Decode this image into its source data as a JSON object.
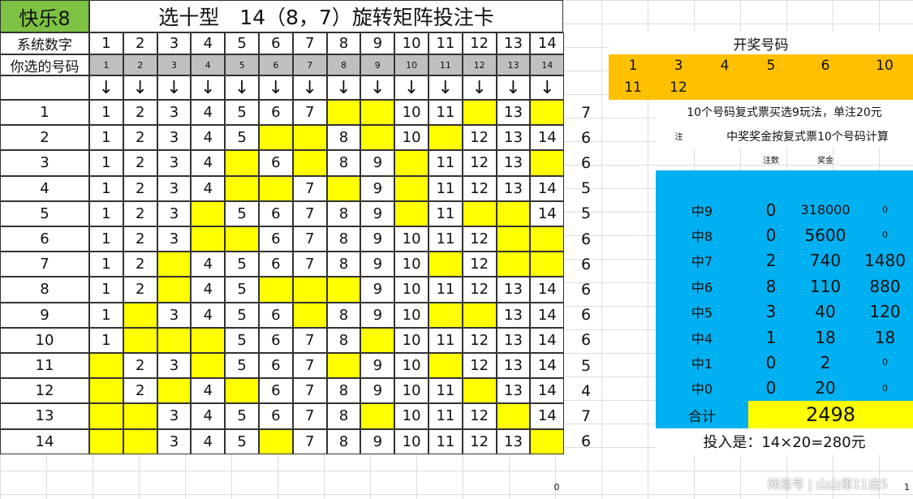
{
  "logo": "快乐8",
  "title": "选十型　14（8，7）旋转矩阵投注卡",
  "header_rows": {
    "system_label": "系统数字",
    "chosen_label": "你选的号码",
    "numbers": [
      "1",
      "2",
      "3",
      "4",
      "5",
      "6",
      "7",
      "8",
      "9",
      "10",
      "11",
      "12",
      "13",
      "14"
    ],
    "arrow": "↓"
  },
  "highlight_color": "#ffff00",
  "matrix": [
    {
      "row": "1",
      "cells": [
        "1",
        "2",
        "3",
        "4",
        "5",
        "6",
        "7",
        "",
        "",
        "10",
        "11",
        "",
        "13",
        ""
      ],
      "hits": "7"
    },
    {
      "row": "2",
      "cells": [
        "1",
        "2",
        "3",
        "4",
        "5",
        "",
        "",
        "8",
        "",
        "10",
        "",
        "12",
        "13",
        "14"
      ],
      "hits": "6"
    },
    {
      "row": "3",
      "cells": [
        "1",
        "2",
        "3",
        "4",
        "",
        "6",
        "",
        "8",
        "9",
        "",
        "11",
        "12",
        "13",
        ""
      ],
      "hits": "6"
    },
    {
      "row": "4",
      "cells": [
        "1",
        "2",
        "3",
        "4",
        "",
        "",
        "7",
        "",
        "9",
        "",
        "11",
        "12",
        "13",
        "14"
      ],
      "hits": "5"
    },
    {
      "row": "5",
      "cells": [
        "1",
        "2",
        "3",
        "",
        "5",
        "6",
        "7",
        "8",
        "9",
        "",
        "11",
        "",
        "",
        "14"
      ],
      "hits": "5"
    },
    {
      "row": "6",
      "cells": [
        "1",
        "2",
        "3",
        "",
        "",
        "6",
        "7",
        "8",
        "9",
        "10",
        "11",
        "12",
        "",
        ""
      ],
      "hits": "6"
    },
    {
      "row": "7",
      "cells": [
        "1",
        "2",
        "",
        "4",
        "5",
        "6",
        "7",
        "8",
        "9",
        "10",
        "",
        "12",
        "",
        ""
      ],
      "hits": "6"
    },
    {
      "row": "8",
      "cells": [
        "1",
        "2",
        "",
        "4",
        "5",
        "",
        "",
        "",
        "9",
        "10",
        "11",
        "12",
        "13",
        "14"
      ],
      "hits": "6"
    },
    {
      "row": "9",
      "cells": [
        "1",
        "",
        "3",
        "4",
        "5",
        "6",
        "",
        "8",
        "9",
        "10",
        "",
        "",
        "13",
        "14"
      ],
      "hits": "6"
    },
    {
      "row": "10",
      "cells": [
        "1",
        "",
        "",
        "",
        "5",
        "6",
        "7",
        "8",
        "",
        "10",
        "11",
        "12",
        "13",
        "14"
      ],
      "hits": "6"
    },
    {
      "row": "11",
      "cells": [
        "",
        "2",
        "3",
        "",
        "5",
        "6",
        "7",
        "",
        "9",
        "10",
        "",
        "12",
        "13",
        "14"
      ],
      "hits": "5"
    },
    {
      "row": "12",
      "cells": [
        "",
        "2",
        "",
        "4",
        "",
        "6",
        "7",
        "8",
        "9",
        "10",
        "11",
        "",
        "13",
        "14"
      ],
      "hits": "4"
    },
    {
      "row": "13",
      "cells": [
        "",
        "",
        "3",
        "4",
        "5",
        "6",
        "7",
        "8",
        "",
        "10",
        "11",
        "12",
        "",
        "14"
      ],
      "hits": "7"
    },
    {
      "row": "14",
      "cells": [
        "",
        "",
        "3",
        "4",
        "5",
        "",
        "7",
        "8",
        "9",
        "10",
        "11",
        "12",
        "13",
        ""
      ],
      "hits": "6"
    }
  ],
  "draw": {
    "title": "开奖号码",
    "numbers": [
      "1",
      "3",
      "4",
      "5",
      "6",
      "10",
      "11",
      "12"
    ]
  },
  "notes": {
    "line1": "10个号码复式票买选9玩法，单注20元",
    "note_label": "注",
    "line2": "中奖奖金按复式票10个号码计算",
    "col_count": "注数",
    "col_prize": "奖金"
  },
  "prizes": [
    {
      "level": "中9",
      "count": "0",
      "prize": "318000",
      "total": "0"
    },
    {
      "level": "中8",
      "count": "0",
      "prize": "5600",
      "total": "0"
    },
    {
      "level": "中7",
      "count": "2",
      "prize": "740",
      "total": "1480"
    },
    {
      "level": "中6",
      "count": "8",
      "prize": "110",
      "total": "880"
    },
    {
      "level": "中5",
      "count": "3",
      "prize": "40",
      "total": "120"
    },
    {
      "level": "中4",
      "count": "1",
      "prize": "18",
      "total": "18"
    },
    {
      "level": "中1",
      "count": "0",
      "prize": "2",
      "total": "0"
    },
    {
      "level": "中0",
      "count": "0",
      "prize": "20",
      "total": "0"
    }
  ],
  "total": {
    "label": "合计",
    "value": "2498"
  },
  "investment": "投入是：14×20=280元",
  "footer": {
    "left_num": "0",
    "right_num": "1",
    "watermark": "网易号 | 山山哥11选5"
  }
}
